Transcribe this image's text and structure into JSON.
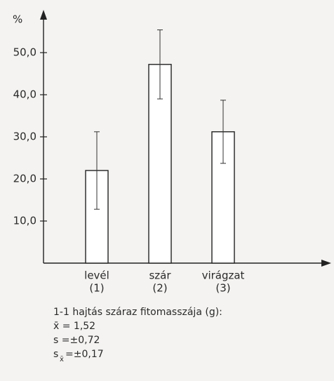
{
  "chart_data": {
    "type": "bar",
    "ylabel": "%",
    "categories": [
      "levél",
      "szár",
      "virágzat"
    ],
    "category_numbers": [
      "(1)",
      "(2)",
      "(3)"
    ],
    "values": [
      22,
      47.2,
      31.2
    ],
    "errors": [
      9.2,
      8.2,
      7.5
    ],
    "color": "#ffffff",
    "ylim": [
      0,
      60
    ],
    "yticks": [
      {
        "value": 10,
        "label": "10,0"
      },
      {
        "value": 20,
        "label": "20,0"
      },
      {
        "value": 30,
        "label": "30,0"
      },
      {
        "value": 40,
        "label": "40,0"
      },
      {
        "value": 50,
        "label": "50,0"
      }
    ],
    "notes": [
      "1-1 hajtás száraz fitomasszája (g):",
      "x̄ = 1,52",
      "s =±0,72"
    ],
    "note_last": {
      "symbol": "s",
      "subscript": "x̄",
      "text": "=±0,17"
    }
  }
}
